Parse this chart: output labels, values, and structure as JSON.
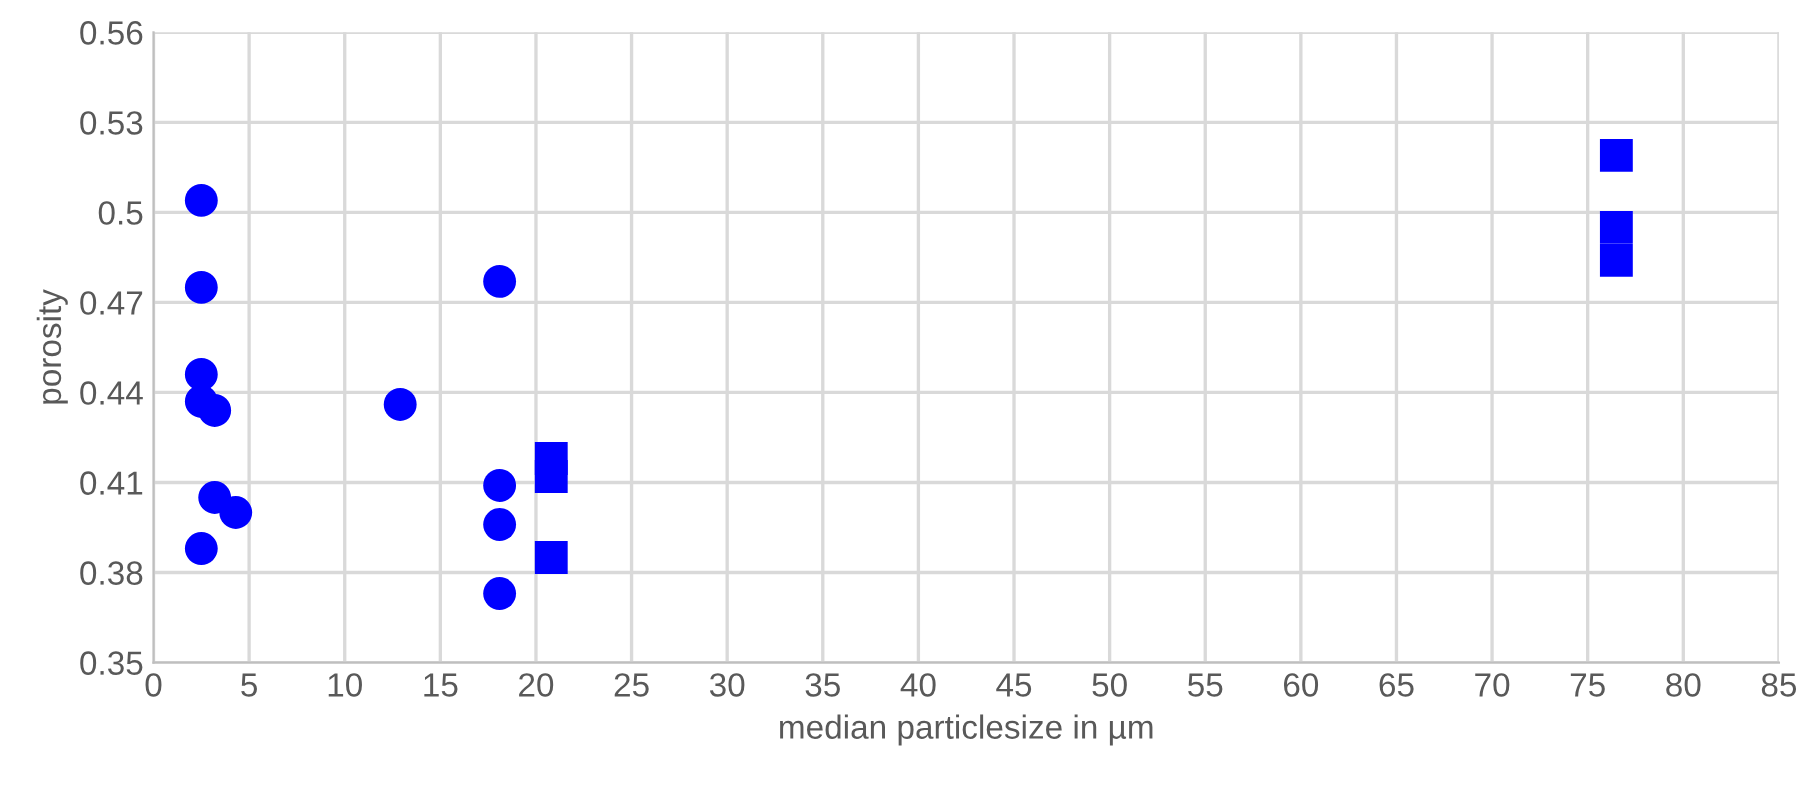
{
  "chart_data": {
    "type": "scatter",
    "xlabel": "median particlesize in µm",
    "ylabel": "porosity",
    "series": [
      {
        "color": "#0000ff",
        "marker": "circle",
        "x": [
          2.5,
          2.5,
          2.5,
          2.5,
          3.2,
          3.2,
          4.3,
          2.5,
          12.9,
          18.1,
          18.1,
          18.1,
          18.1
        ],
        "values": [
          0.504,
          0.475,
          0.446,
          0.437,
          0.434,
          0.405,
          0.4,
          0.388,
          0.436,
          0.477,
          0.409,
          0.396,
          0.373
        ]
      },
      {
        "color": "#0000ff",
        "marker": "square",
        "x": [
          20.8,
          20.8,
          20.8,
          76.5,
          76.5,
          76.5
        ],
        "values": [
          0.418,
          0.412,
          0.385,
          0.519,
          0.495,
          0.484
        ]
      }
    ],
    "xlim": [
      0,
      85
    ],
    "xticks": [
      0,
      5,
      10,
      15,
      20,
      25,
      30,
      35,
      40,
      45,
      50,
      55,
      60,
      65,
      70,
      75,
      80,
      85
    ],
    "ylim": [
      0.35,
      0.56
    ],
    "yticks": [
      {
        "value": 0.35,
        "label": "0.35"
      },
      {
        "value": 0.38,
        "label": "0.38"
      },
      {
        "value": 0.41,
        "label": "0.41"
      },
      {
        "value": 0.44,
        "label": "0.44"
      },
      {
        "value": 0.47,
        "label": "0.47"
      },
      {
        "value": 0.5,
        "label": "0.5"
      },
      {
        "value": 0.53,
        "label": "0.53"
      },
      {
        "value": 0.56,
        "label": "0.56"
      }
    ],
    "grid": true,
    "legend": false
  }
}
